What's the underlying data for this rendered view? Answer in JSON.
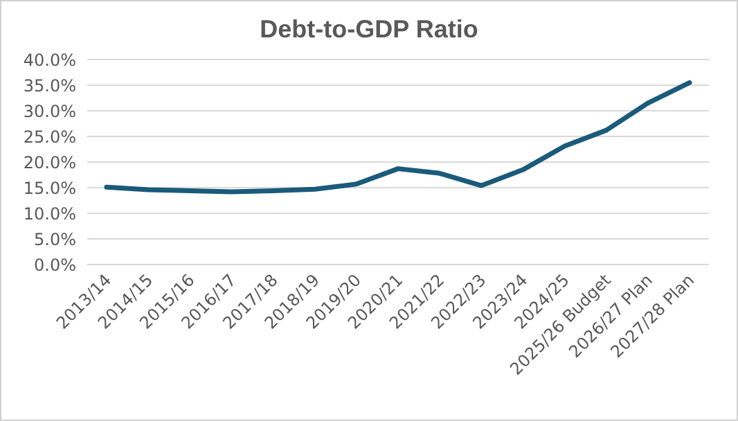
{
  "chart_data": {
    "type": "line",
    "title": "Debt-to-GDP Ratio",
    "categories": [
      "2013/14",
      "2014/15",
      "2015/16",
      "2016/17",
      "2017/18",
      "2018/19",
      "2019/20",
      "2020/21",
      "2021/22",
      "2022/23",
      "2023/24",
      "2024/25",
      "2025/26 Budget",
      "2026/27 Plan",
      "2027/28 Plan"
    ],
    "series": [
      {
        "color": "#1a5a7a",
        "values": [
          15.1,
          14.6,
          14.4,
          14.2,
          14.4,
          14.7,
          15.7,
          18.7,
          17.8,
          15.4,
          18.5,
          23.1,
          26.2,
          31.5,
          35.5
        ]
      }
    ],
    "ylim": [
      0,
      40
    ],
    "yticks": [
      {
        "value": 0,
        "label": "0.0%"
      },
      {
        "value": 5,
        "label": "5.0%"
      },
      {
        "value": 10,
        "label": "10.0%"
      },
      {
        "value": 15,
        "label": "15.0%"
      },
      {
        "value": 20,
        "label": "20.0%"
      },
      {
        "value": 25,
        "label": "25.0%"
      },
      {
        "value": 30,
        "label": "30.0%"
      },
      {
        "value": 35,
        "label": "35.0%"
      },
      {
        "value": 40,
        "label": "40.0%"
      }
    ],
    "grid": "y",
    "legend": false,
    "marker": "none",
    "line_style": "solid"
  }
}
